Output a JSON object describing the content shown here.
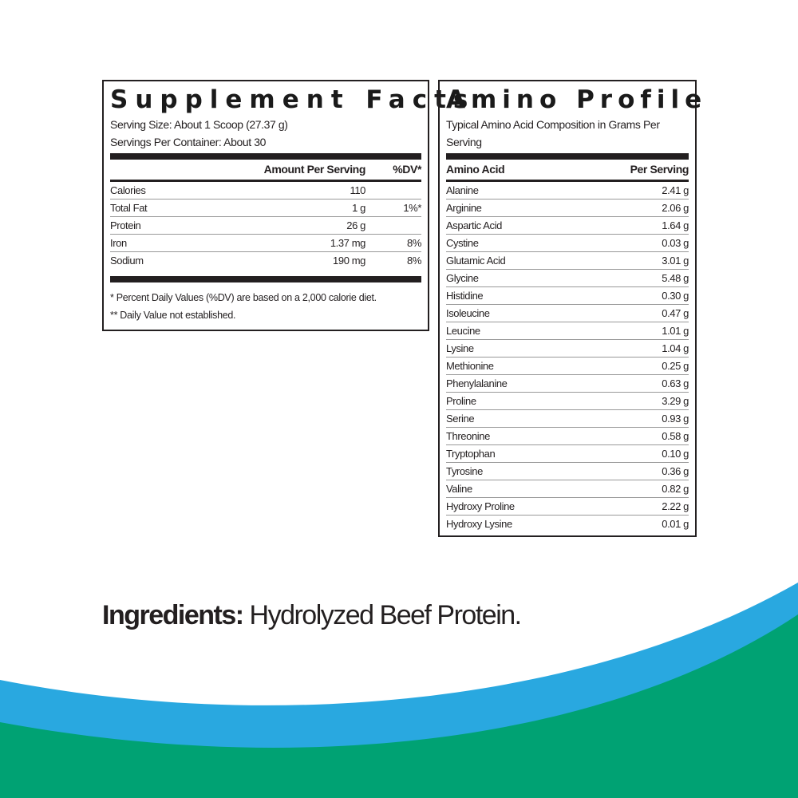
{
  "colors": {
    "wave_blue": "#29a8e0",
    "wave_green": "#00a273",
    "text": "#231f20"
  },
  "supplement": {
    "title": "Supplement Facts",
    "serving_size": "Serving Size: About 1 Scoop (27.37 g)",
    "servings_per_container": "Servings Per Container: About 30",
    "headers": {
      "amount": "Amount Per Serving",
      "dv": "%DV*"
    },
    "rows": [
      {
        "name": "Calories",
        "amount": "110",
        "dv": ""
      },
      {
        "name": "Total Fat",
        "amount": "1 g",
        "dv": "1%*"
      },
      {
        "name": "Protein",
        "amount": "26 g",
        "dv": ""
      },
      {
        "name": "Iron",
        "amount": "1.37 mg",
        "dv": "8%"
      },
      {
        "name": "Sodium",
        "amount": "190 mg",
        "dv": "8%"
      }
    ],
    "footnotes": [
      "* Percent Daily Values (%DV) are based on a 2,000 calorie diet.",
      "** Daily Value not established."
    ]
  },
  "amino": {
    "title": "Amino Profile",
    "subtitle": "Typical Amino Acid Composition in Grams Per Serving",
    "headers": {
      "acid": "Amino Acid",
      "per": "Per Serving"
    },
    "rows": [
      {
        "name": "Alanine",
        "value": "2.41 g"
      },
      {
        "name": "Arginine",
        "value": "2.06 g"
      },
      {
        "name": "Aspartic Acid",
        "value": "1.64 g"
      },
      {
        "name": "Cystine",
        "value": "0.03 g"
      },
      {
        "name": "Glutamic Acid",
        "value": "3.01 g"
      },
      {
        "name": "Glycine",
        "value": "5.48 g"
      },
      {
        "name": "Histidine",
        "value": "0.30 g"
      },
      {
        "name": "Isoleucine",
        "value": "0.47 g"
      },
      {
        "name": "Leucine",
        "value": "1.01 g"
      },
      {
        "name": "Lysine",
        "value": "1.04 g"
      },
      {
        "name": "Methionine",
        "value": "0.25 g"
      },
      {
        "name": "Phenylalanine",
        "value": "0.63 g"
      },
      {
        "name": "Proline",
        "value": "3.29 g"
      },
      {
        "name": "Serine",
        "value": "0.93 g"
      },
      {
        "name": "Threonine",
        "value": "0.58 g"
      },
      {
        "name": "Tryptophan",
        "value": "0.10 g"
      },
      {
        "name": "Tyrosine",
        "value": "0.36 g"
      },
      {
        "name": "Valine",
        "value": "0.82 g"
      },
      {
        "name": "Hydroxy Proline",
        "value": "2.22 g"
      },
      {
        "name": "Hydroxy Lysine",
        "value": "0.01 g"
      }
    ]
  },
  "ingredients": {
    "label": "Ingredients:",
    "text": " Hydrolyzed Beef Protein."
  }
}
